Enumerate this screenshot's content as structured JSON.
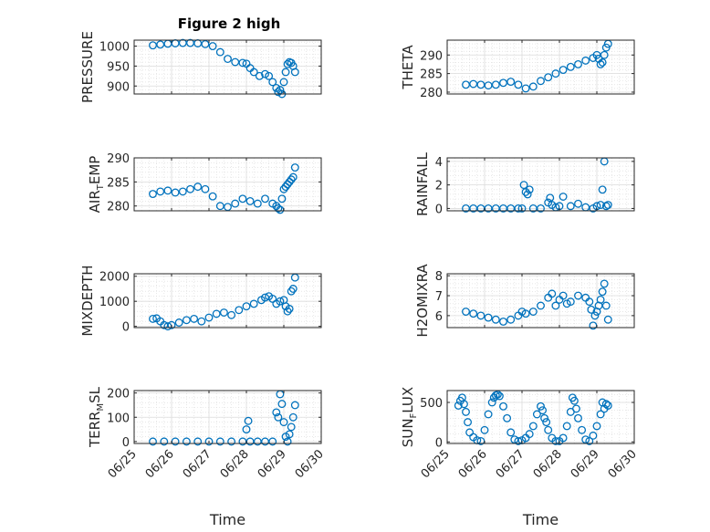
{
  "figure": {
    "title": "Figure 2 high"
  },
  "chart_data": [
    {
      "type": "scatter",
      "ylabel": "PRESSURE",
      "ylabel_sub": "",
      "ylabel_tail": "",
      "xlabel": "",
      "ylim": [
        880,
        1015
      ],
      "yticks": [
        900,
        950,
        1000
      ],
      "grid": true,
      "x": [
        25.5,
        25.7,
        25.9,
        26.1,
        26.3,
        26.5,
        26.7,
        26.9,
        27.1,
        27.3,
        27.5,
        27.7,
        27.9,
        28.0,
        28.1,
        28.2,
        28.35,
        28.5,
        28.6,
        28.7,
        28.8,
        28.85,
        28.9,
        28.95,
        29.0,
        29.05,
        29.1,
        29.15,
        29.2,
        29.25,
        29.3
      ],
      "y": [
        1002,
        1004,
        1006,
        1007,
        1008,
        1008,
        1007,
        1005,
        1000,
        985,
        968,
        960,
        958,
        956,
        945,
        935,
        925,
        930,
        925,
        910,
        895,
        885,
        890,
        880,
        910,
        935,
        955,
        960,
        958,
        950,
        935
      ]
    },
    {
      "type": "scatter",
      "ylabel": "THETA",
      "ylabel_sub": "",
      "ylabel_tail": "",
      "xlabel": "",
      "ylim": [
        279.5,
        294
      ],
      "yticks": [
        280,
        285,
        290
      ],
      "grid": true,
      "x": [
        25.5,
        25.7,
        25.9,
        26.1,
        26.3,
        26.5,
        26.7,
        26.9,
        27.1,
        27.3,
        27.5,
        27.7,
        27.9,
        28.1,
        28.3,
        28.5,
        28.7,
        28.9,
        29.0,
        29.05,
        29.1,
        29.15,
        29.2,
        29.25,
        29.3
      ],
      "y": [
        282.0,
        282.2,
        282.0,
        281.8,
        282.0,
        282.5,
        282.8,
        282.0,
        281.0,
        281.5,
        283.0,
        284.0,
        285.0,
        286.0,
        286.8,
        287.5,
        288.5,
        289.2,
        290.0,
        289.0,
        287.5,
        288.0,
        290.0,
        292.0,
        293.0
      ]
    },
    {
      "type": "scatter",
      "ylabel": "AIR",
      "ylabel_sub": "T",
      "ylabel_tail": "EMP",
      "xlabel": "",
      "ylim": [
        279,
        290
      ],
      "yticks": [
        280,
        285,
        290
      ],
      "grid": true,
      "x": [
        25.5,
        25.7,
        25.9,
        26.1,
        26.3,
        26.5,
        26.7,
        26.9,
        27.1,
        27.3,
        27.5,
        27.7,
        27.9,
        28.1,
        28.3,
        28.5,
        28.7,
        28.8,
        28.85,
        28.9,
        28.95,
        29.0,
        29.05,
        29.1,
        29.15,
        29.2,
        29.25,
        29.3
      ],
      "y": [
        282.5,
        283.0,
        283.2,
        282.8,
        283.0,
        283.5,
        284.0,
        283.5,
        282.0,
        280.0,
        279.8,
        280.5,
        281.5,
        281.0,
        280.5,
        281.5,
        280.5,
        280.0,
        279.5,
        279.2,
        281.5,
        283.5,
        284.0,
        284.5,
        285.0,
        285.5,
        286.0,
        288.0
      ]
    },
    {
      "type": "scatter",
      "ylabel": "RAINFALL",
      "ylabel_sub": "",
      "ylabel_tail": "",
      "xlabel": "",
      "ylim": [
        -0.2,
        4.3
      ],
      "yticks": [
        0,
        2,
        4
      ],
      "grid": true,
      "x": [
        25.5,
        25.7,
        25.9,
        26.1,
        26.3,
        26.5,
        26.7,
        26.9,
        27.0,
        27.05,
        27.1,
        27.15,
        27.2,
        27.3,
        27.5,
        27.7,
        27.75,
        27.8,
        27.9,
        28.0,
        28.1,
        28.3,
        28.5,
        28.7,
        28.9,
        29.0,
        29.1,
        29.15,
        29.2,
        29.25,
        29.3
      ],
      "y": [
        0,
        0,
        0,
        0,
        0,
        0,
        0,
        0,
        0,
        2.0,
        1.4,
        1.2,
        1.6,
        0,
        0,
        0.5,
        0.9,
        0.3,
        0.1,
        0.2,
        1.0,
        0.2,
        0.4,
        0.1,
        0.0,
        0.2,
        0.3,
        1.6,
        4.0,
        0.2,
        0.3
      ]
    },
    {
      "type": "scatter",
      "ylabel": "MIXDEPTH",
      "ylabel_sub": "",
      "ylabel_tail": "",
      "xlabel": "",
      "ylim": [
        -50,
        2100
      ],
      "yticks": [
        0,
        1000,
        2000
      ],
      "grid": true,
      "x": [
        25.5,
        25.6,
        25.7,
        25.8,
        25.9,
        26.0,
        26.2,
        26.4,
        26.6,
        26.8,
        27.0,
        27.2,
        27.4,
        27.6,
        27.8,
        28.0,
        28.2,
        28.4,
        28.5,
        28.6,
        28.7,
        28.8,
        28.9,
        29.0,
        29.05,
        29.1,
        29.15,
        29.2,
        29.25,
        29.3
      ],
      "y": [
        300,
        320,
        200,
        50,
        0,
        50,
        150,
        250,
        300,
        200,
        350,
        500,
        550,
        450,
        650,
        800,
        900,
        1050,
        1150,
        1200,
        1100,
        900,
        1000,
        1050,
        800,
        600,
        700,
        1400,
        1500,
        1950
      ]
    },
    {
      "type": "scatter",
      "ylabel": "H2OMIXRA",
      "ylabel_sub": "",
      "ylabel_tail": "",
      "xlabel": "",
      "ylim": [
        5.4,
        8.1
      ],
      "yticks": [
        6,
        7,
        8
      ],
      "grid": true,
      "x": [
        25.5,
        25.7,
        25.9,
        26.1,
        26.3,
        26.5,
        26.7,
        26.9,
        27.0,
        27.1,
        27.3,
        27.5,
        27.7,
        27.8,
        27.9,
        28.0,
        28.1,
        28.2,
        28.3,
        28.5,
        28.7,
        28.8,
        28.85,
        28.9,
        28.95,
        29.0,
        29.05,
        29.1,
        29.15,
        29.2,
        29.25,
        29.3
      ],
      "y": [
        6.2,
        6.1,
        6.0,
        5.9,
        5.8,
        5.7,
        5.8,
        6.0,
        6.2,
        6.1,
        6.2,
        6.5,
        6.9,
        7.1,
        6.5,
        6.8,
        7.0,
        6.6,
        6.7,
        7.0,
        6.9,
        6.7,
        6.3,
        5.5,
        6.0,
        6.2,
        6.5,
        6.8,
        7.2,
        7.6,
        6.5,
        5.8
      ]
    },
    {
      "type": "scatter",
      "ylabel": "TERR",
      "ylabel_sub": "M",
      "ylabel_tail": "SL",
      "xlabel": "Time",
      "ylim": [
        -8,
        210
      ],
      "yticks": [
        0,
        100,
        200
      ],
      "grid": true,
      "x": [
        25.5,
        25.8,
        26.1,
        26.4,
        26.7,
        27.0,
        27.3,
        27.6,
        27.9,
        28.0,
        28.05,
        28.1,
        28.3,
        28.5,
        28.7,
        28.8,
        28.85,
        28.9,
        28.95,
        29.0,
        29.05,
        29.1,
        29.15,
        29.2,
        29.25,
        29.3
      ],
      "y": [
        0,
        0,
        0,
        0,
        0,
        0,
        0,
        0,
        0,
        50,
        85,
        0,
        0,
        0,
        0,
        120,
        100,
        195,
        155,
        80,
        20,
        0,
        30,
        60,
        100,
        150
      ]
    },
    {
      "type": "scatter",
      "ylabel": "SUN",
      "ylabel_sub": "F",
      "ylabel_tail": "LUX",
      "xlabel": "Time",
      "ylim": [
        -20,
        650
      ],
      "yticks": [
        0,
        500
      ],
      "grid": true,
      "x": [
        25.3,
        25.35,
        25.4,
        25.45,
        25.5,
        25.55,
        25.6,
        25.7,
        25.8,
        25.9,
        26.0,
        26.1,
        26.2,
        26.25,
        26.3,
        26.35,
        26.4,
        26.5,
        26.6,
        26.7,
        26.8,
        26.9,
        27.0,
        27.1,
        27.2,
        27.3,
        27.4,
        27.5,
        27.55,
        27.6,
        27.65,
        27.7,
        27.8,
        27.9,
        28.0,
        28.1,
        28.2,
        28.3,
        28.35,
        28.4,
        28.45,
        28.5,
        28.6,
        28.7,
        28.8,
        28.9,
        29.0,
        29.1,
        29.15,
        29.2,
        29.25,
        29.3
      ],
      "y": [
        460,
        520,
        560,
        480,
        380,
        250,
        120,
        60,
        20,
        10,
        150,
        350,
        500,
        560,
        590,
        600,
        580,
        450,
        300,
        120,
        30,
        10,
        20,
        50,
        100,
        200,
        350,
        450,
        400,
        300,
        250,
        150,
        50,
        10,
        10,
        50,
        200,
        380,
        560,
        520,
        420,
        300,
        150,
        30,
        10,
        80,
        200,
        350,
        500,
        420,
        480,
        460
      ]
    }
  ],
  "xaxis": {
    "range": [
      "06/25",
      "06/30"
    ],
    "ticks": [
      "06/25",
      "06/26",
      "06/27",
      "06/28",
      "06/29",
      "06/30"
    ]
  }
}
